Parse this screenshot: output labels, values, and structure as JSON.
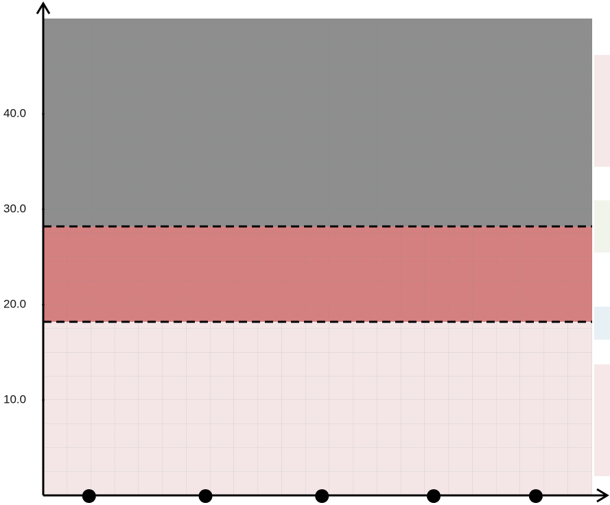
{
  "chart_data": {
    "type": "band",
    "ylim": [
      0,
      50
    ],
    "yticks": [
      {
        "value": 10,
        "label": "10.0"
      },
      {
        "value": 20,
        "label": "20.0"
      },
      {
        "value": 30,
        "label": "30.0"
      },
      {
        "value": 40,
        "label": "40.0"
      }
    ],
    "xlim": [
      0,
      57.5
    ],
    "bands": [
      {
        "from": 0,
        "to": 18.2,
        "color": "#f4e6e6"
      },
      {
        "from": 18.2,
        "to": 28.2,
        "color": "#d58080"
      },
      {
        "from": 28.2,
        "to": 50,
        "color": "#8e8e8e"
      }
    ],
    "points": {
      "x": [
        4.8,
        17,
        29.2,
        40.9,
        51.6
      ],
      "y": [
        0,
        0,
        0,
        0,
        0
      ],
      "color": "#000000"
    },
    "grid": true
  }
}
